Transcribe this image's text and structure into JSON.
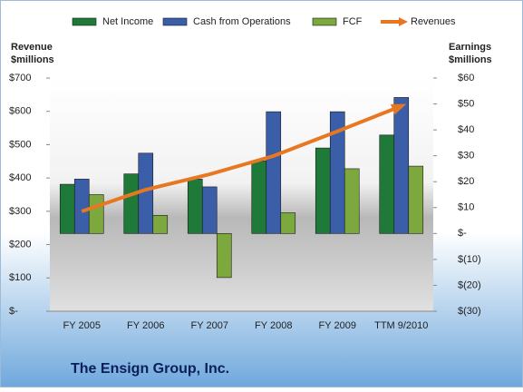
{
  "chart_data": {
    "type": "combo",
    "title": "The Ensign Group, Inc.",
    "y_label": [
      "Revenue",
      "$millions"
    ],
    "y2_label": [
      "Earnings",
      "$millions"
    ],
    "categories": [
      "FY 2005",
      "FY 2006",
      "FY 2007",
      "FY 2008",
      "FY 2009",
      "TTM 9/2010"
    ],
    "series": [
      {
        "name": "Net Income",
        "type": "bar",
        "axis": "y2",
        "color": "#1f7a3a",
        "values": [
          19,
          23,
          21,
          28,
          33,
          38
        ]
      },
      {
        "name": "Cash from Operations",
        "type": "bar",
        "axis": "y2",
        "color": "#3b5ea8",
        "values": [
          21,
          31,
          18,
          47,
          47,
          52.5
        ]
      },
      {
        "name": "FCF",
        "type": "bar",
        "axis": "y2",
        "color": "#7ca83e",
        "values": [
          15,
          7,
          -17,
          8,
          25,
          26
        ]
      },
      {
        "name": "Revenues",
        "type": "line",
        "axis": "y",
        "color": "#e87722",
        "values": [
          300,
          365,
          411,
          466,
          540,
          616
        ]
      }
    ],
    "ylim": [
      0,
      700
    ],
    "yticks": [
      {
        "value": 0,
        "label": "$-"
      },
      {
        "value": 100,
        "label": "$100"
      },
      {
        "value": 200,
        "label": "$200"
      },
      {
        "value": 300,
        "label": "$300"
      },
      {
        "value": 400,
        "label": "$400"
      },
      {
        "value": 500,
        "label": "$500"
      },
      {
        "value": 600,
        "label": "$600"
      },
      {
        "value": 700,
        "label": "$700"
      }
    ],
    "y2lim": [
      -30,
      60
    ],
    "y2ticks": [
      {
        "value": -30,
        "label": "$(30)"
      },
      {
        "value": -20,
        "label": "$(20)"
      },
      {
        "value": -10,
        "label": "$(10)"
      },
      {
        "value": 0,
        "label": "$-"
      },
      {
        "value": 10,
        "label": "$10"
      },
      {
        "value": 20,
        "label": "$20"
      },
      {
        "value": 30,
        "label": "$30"
      },
      {
        "value": 40,
        "label": "$40"
      },
      {
        "value": 50,
        "label": "$50"
      },
      {
        "value": 60,
        "label": "$60"
      }
    ]
  }
}
